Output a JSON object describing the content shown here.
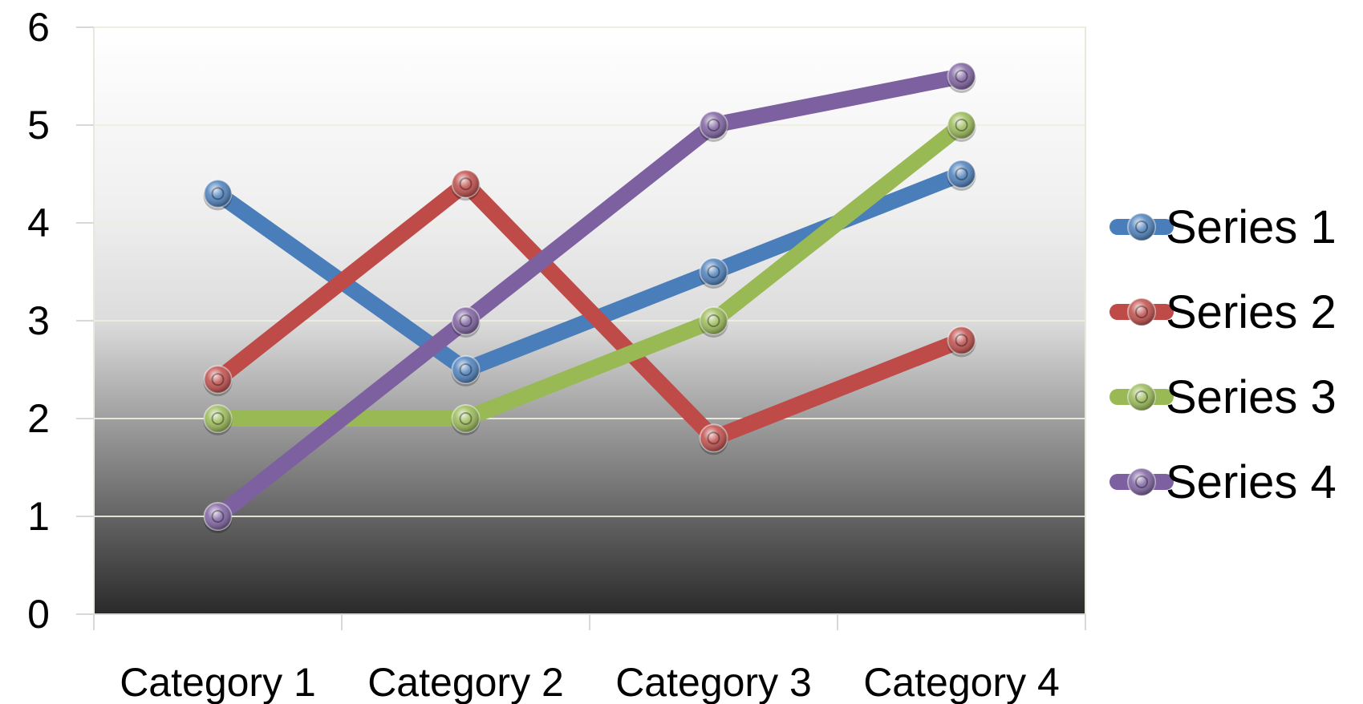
{
  "chart_data": {
    "type": "line",
    "categories": [
      "Category 1",
      "Category 2",
      "Category 3",
      "Category 4"
    ],
    "series": [
      {
        "name": "Series 1",
        "values": [
          4.3,
          2.5,
          3.5,
          4.5
        ],
        "color": "#4a7ebb"
      },
      {
        "name": "Series 2",
        "values": [
          2.4,
          4.4,
          1.8,
          2.8
        ],
        "color": "#be4b48"
      },
      {
        "name": "Series 3",
        "values": [
          2,
          2,
          3,
          5
        ],
        "color": "#98b954"
      },
      {
        "name": "Series 4",
        "values": [
          1,
          3,
          5,
          5.5
        ],
        "color": "#7d60a0"
      }
    ],
    "yticks": [
      "0",
      "1",
      "2",
      "3",
      "4",
      "5",
      "6"
    ],
    "ylim": [
      0,
      6
    ],
    "grid": true,
    "legend": "right",
    "title": "",
    "xlabel": "",
    "ylabel": ""
  }
}
